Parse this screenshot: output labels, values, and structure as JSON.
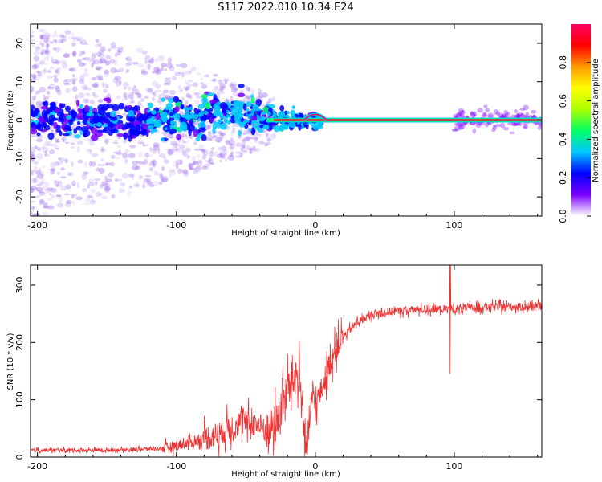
{
  "title": "S117.2022.010.10.34.E24",
  "chart_data": [
    {
      "type": "heatmap",
      "name": "spectrogram",
      "xlabel": "Height of straight line (km)",
      "ylabel": "Frequency (Hz)",
      "xlim": [
        -205,
        163
      ],
      "ylim": [
        -25,
        25
      ],
      "xticks": [
        -200,
        -100,
        0,
        100
      ],
      "xtick_labels": [
        "-200",
        "-100",
        "0",
        "100"
      ],
      "yticks": [
        20,
        10,
        0,
        -10,
        -20
      ],
      "ytick_labels": [
        "20",
        "10",
        "0",
        "-10",
        "-20"
      ],
      "colorbar": {
        "label": "Normalized spectral amplitude",
        "range": [
          0,
          1
        ],
        "ticks": [
          0.0,
          0.2,
          0.4,
          0.6,
          0.8
        ],
        "tick_labels": [
          "0.0",
          "0.2",
          "0.4",
          "0.6",
          "0.8"
        ],
        "colors": [
          "#ffffff",
          "#7b00ff",
          "#0000ff",
          "#00c8ff",
          "#00ff66",
          "#aaff00",
          "#ffff00",
          "#ff9900",
          "#ff0000",
          "#ff0066"
        ]
      },
      "features": {
        "carrier_line": {
          "frequency_hz": 0,
          "x_start_km": 5,
          "x_end_km": 163,
          "amplitude": 0.8
        },
        "noisy_region": {
          "x_start_km": -205,
          "x_end_km": -30,
          "freq_spread_hz": 25
        },
        "signal_band": {
          "x_start_km": -205,
          "x_end_km": 5,
          "freq_spread_hz": 5
        }
      }
    },
    {
      "type": "line",
      "name": "snr",
      "xlabel": "Height of straight line (km)",
      "ylabel": "SNR (10 * v/v)",
      "xlim": [
        -205,
        163
      ],
      "ylim": [
        0,
        335
      ],
      "xticks": [
        -200,
        -100,
        0,
        100
      ],
      "xtick_labels": [
        "-200",
        "-100",
        "0",
        "100"
      ],
      "yticks": [
        0,
        100,
        200,
        300
      ],
      "ytick_labels": [
        "0",
        "100",
        "200",
        "300"
      ],
      "color": "#ee3333",
      "trend": {
        "x": [
          -205,
          -150,
          -110,
          -90,
          -70,
          -55,
          -45,
          -35,
          -28,
          -20,
          -12,
          -6,
          -3,
          0,
          5,
          10,
          15,
          20,
          30,
          40,
          50,
          60,
          80,
          100,
          120,
          140,
          163
        ],
        "y": [
          12,
          12,
          15,
          25,
          40,
          60,
          60,
          45,
          60,
          120,
          150,
          5,
          100,
          90,
          120,
          160,
          190,
          210,
          235,
          248,
          252,
          255,
          258,
          258,
          262,
          262,
          262
        ]
      },
      "spike": {
        "x": 97,
        "y_max": 335,
        "y_min": 145
      }
    }
  ]
}
